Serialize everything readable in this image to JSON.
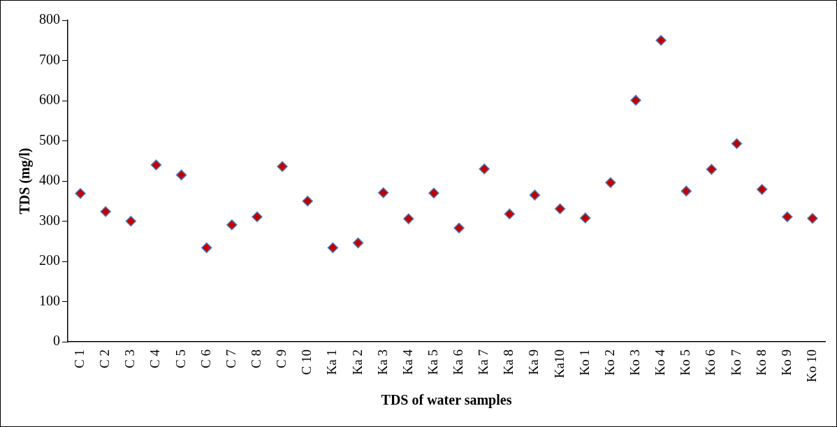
{
  "chart_data": {
    "type": "scatter",
    "xlabel": "TDS of water samples",
    "ylabel": "TDS (mg/l)",
    "categories": [
      "C 1",
      "C 2",
      "C 3",
      "C 4",
      "C 5",
      "C 6",
      "C 7",
      "C 8",
      "C 9",
      "C 10",
      "Ka 1",
      "Ka 2",
      "Ka 3",
      "Ka 4",
      "Ka 5",
      "Ka 6",
      "Ka 7",
      "Ka 8",
      "Ka 9",
      "Ka10",
      "Ko 1",
      "Ko 2",
      "Ko 3",
      "Ko 4",
      "Ko 5",
      "Ko 6",
      "Ko 7",
      "Ko 8",
      "Ko 9",
      "Ko 10"
    ],
    "values": [
      369,
      324,
      300,
      440,
      415,
      234,
      291,
      311,
      436,
      350,
      234,
      246,
      371,
      306,
      370,
      283,
      430,
      318,
      365,
      331,
      308,
      396,
      601,
      750,
      375,
      429,
      493,
      379,
      311,
      307
    ],
    "color": "#c00000",
    "marker": "diamond",
    "ylim": [
      0,
      800
    ],
    "yticks": [
      0,
      100,
      200,
      300,
      400,
      500,
      600,
      700,
      800
    ],
    "grid": false,
    "legend": false
  }
}
